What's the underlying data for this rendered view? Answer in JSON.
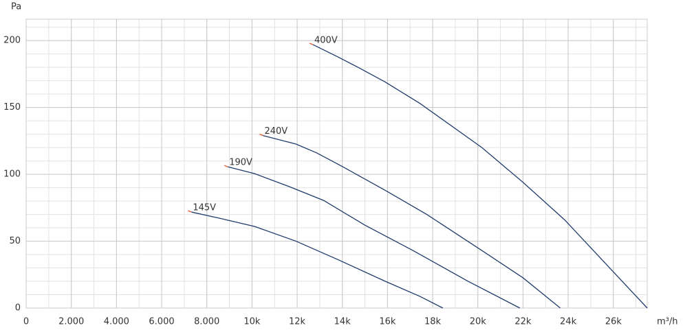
{
  "chart_data": {
    "type": "line",
    "y_label": "Pa",
    "x_label": "m³/h",
    "xlim": [
      0,
      27500
    ],
    "ylim": [
      0,
      216
    ],
    "xticks": [
      0,
      {
        "value": 2000,
        "label": "2.000"
      },
      {
        "value": 4000,
        "label": "4.000"
      },
      {
        "value": 6000,
        "label": "6.000"
      },
      {
        "value": 8000,
        "label": "8.000"
      },
      {
        "value": 10000,
        "label": "10k"
      },
      {
        "value": 12000,
        "label": "12k"
      },
      {
        "value": 14000,
        "label": "14k"
      },
      {
        "value": 16000,
        "label": "16k"
      },
      {
        "value": 18000,
        "label": "18k"
      },
      {
        "value": 20000,
        "label": "20k"
      },
      {
        "value": 22000,
        "label": "22k"
      },
      {
        "value": 24000,
        "label": "24k"
      },
      {
        "value": 26000,
        "label": "26k"
      }
    ],
    "yticks": [
      0,
      50,
      100,
      150,
      200
    ],
    "grid": true,
    "minor_grid": {
      "x": 1000,
      "y": 10
    },
    "series": [
      {
        "name": "400V",
        "color": "#1f3a6b",
        "marker_color": "#e8643c",
        "x": [
          12700,
          13780,
          14700,
          15900,
          17440,
          20180,
          22000,
          23840,
          25670,
          27500
        ],
        "values": [
          197,
          188,
          180,
          169,
          153,
          120,
          94,
          66,
          33,
          0
        ]
      },
      {
        "name": "240V",
        "color": "#1f3a6b",
        "marker_color": "#e8643c",
        "x": [
          10490,
          11950,
          12870,
          14090,
          15900,
          17740,
          20180,
          22000,
          23650
        ],
        "values": [
          129,
          122.6,
          116,
          105,
          88,
          70,
          43,
          22.6,
          0
        ]
      },
      {
        "name": "190V",
        "color": "#1f3a6b",
        "marker_color": "#e8643c",
        "x": [
          8930,
          10120,
          11650,
          13170,
          15000,
          17130,
          19570,
          21860
        ],
        "values": [
          105.6,
          100.5,
          90.8,
          80.5,
          62,
          43,
          20,
          0
        ]
      },
      {
        "name": "145V",
        "color": "#1f3a6b",
        "marker_color": "#e8643c",
        "x": [
          7320,
          8600,
          10120,
          11950,
          13780,
          15900,
          17440,
          18450
        ],
        "values": [
          71.8,
          67,
          61,
          50,
          36.4,
          20,
          8.7,
          0
        ]
      }
    ]
  }
}
